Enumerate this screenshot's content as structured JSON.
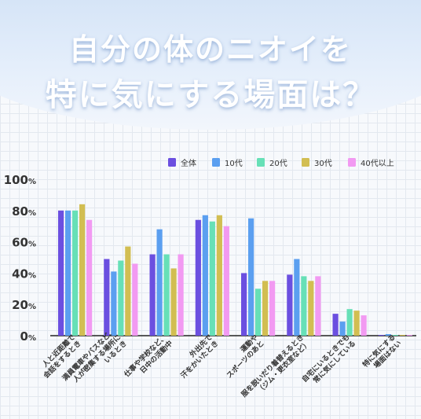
{
  "header": {
    "title_line1": "自分の体のニオイを",
    "title_line2": "特に気にする場面は？"
  },
  "colors": {
    "series": [
      "#6b4fe0",
      "#5b9ff0",
      "#67e0b7",
      "#d2be52",
      "#f29af2"
    ],
    "header_gradient": [
      "#cfe0f5",
      "#f2f6fc"
    ]
  },
  "chart_data": {
    "type": "bar",
    "title": "",
    "xlabel": "",
    "ylabel": "",
    "ylim": [
      0,
      100
    ],
    "ytick_values": [
      0,
      20,
      40,
      60,
      80,
      100
    ],
    "ytick_labels": [
      "0%",
      "20%",
      "40%",
      "60%",
      "80%",
      "100%"
    ],
    "grid": false,
    "legend_position": "top-right",
    "categories": [
      [
        "人と近距離で",
        "会話をするとき"
      ],
      [
        "満員電車やバスなど、",
        "人が密集する場所に",
        "いるとき"
      ],
      [
        "仕事や学校など、",
        "日中の活動中"
      ],
      [
        "外出先で",
        "汗をかいたとき"
      ],
      [
        "運動や",
        "スポーツのあと"
      ],
      [
        "服を脱いだり着替えるとき",
        "（ジム・更衣室など）"
      ],
      [
        "自宅にいるときでも",
        "常に気にしている"
      ],
      [
        "特に気にする",
        "場面はない"
      ]
    ],
    "series": [
      {
        "name": "全体",
        "values": [
          80,
          49,
          52,
          74,
          40,
          39,
          14,
          0.5
        ]
      },
      {
        "name": "10代",
        "values": [
          80,
          41,
          68,
          77,
          75,
          49,
          9,
          1
        ]
      },
      {
        "name": "20代",
        "values": [
          80,
          48,
          52,
          73,
          30,
          38,
          17,
          0.5
        ]
      },
      {
        "name": "30代",
        "values": [
          84,
          57,
          43,
          77,
          35,
          35,
          16,
          0.5
        ]
      },
      {
        "name": "40代以上",
        "values": [
          74,
          46,
          52,
          70,
          35,
          38,
          13,
          0.5
        ]
      }
    ]
  }
}
